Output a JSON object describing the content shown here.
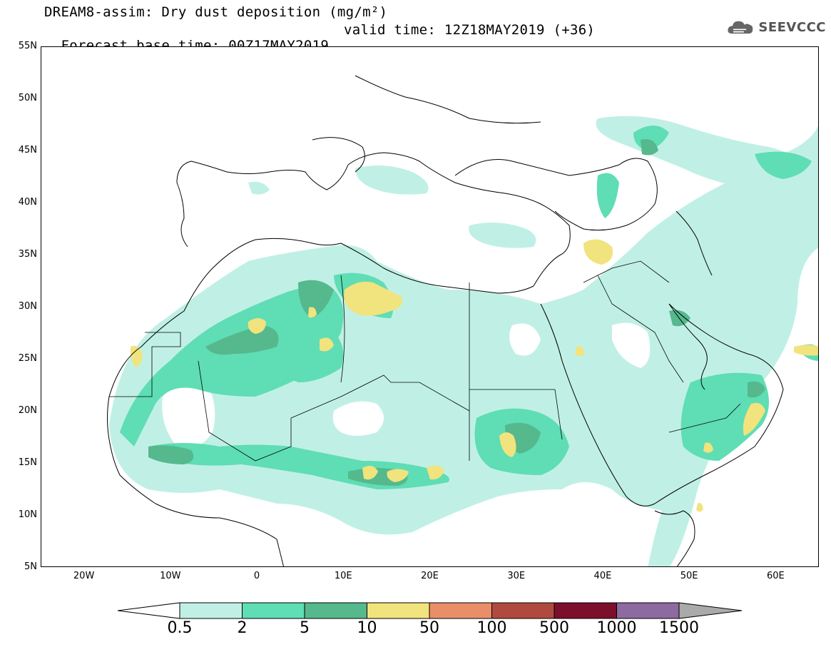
{
  "header": {
    "title_line1": "DREAM8-assim: Dry dust deposition (mg/m²)",
    "title_line2_left": "Forecast base time: 00Z17MAY2019",
    "title_line2_right": "valid time: 12Z18MAY2019 (+36)",
    "logo_text": "SEEVCCC",
    "logo_icon": "cloud-icon"
  },
  "map": {
    "lon_range": [
      -25,
      65
    ],
    "lat_range": [
      5,
      55
    ],
    "lat_labels": [
      "55N",
      "50N",
      "45N",
      "40N",
      "35N",
      "30N",
      "25N",
      "20N",
      "15N",
      "10N",
      "5N"
    ],
    "lon_labels": [
      "20W",
      "10W",
      "0",
      "10E",
      "20E",
      "30E",
      "40E",
      "50E",
      "60E"
    ]
  },
  "legend": {
    "labels": [
      "0.5",
      "2",
      "5",
      "10",
      "50",
      "100",
      "500",
      "1000",
      "1500"
    ],
    "colors": [
      "#c0f0e5",
      "#5fddb4",
      "#55b98d",
      "#f1e37d",
      "#ea8e6a",
      "#b04a3f",
      "#7b0f2c",
      "#8d6a9f",
      "#aaaaaa"
    ]
  }
}
